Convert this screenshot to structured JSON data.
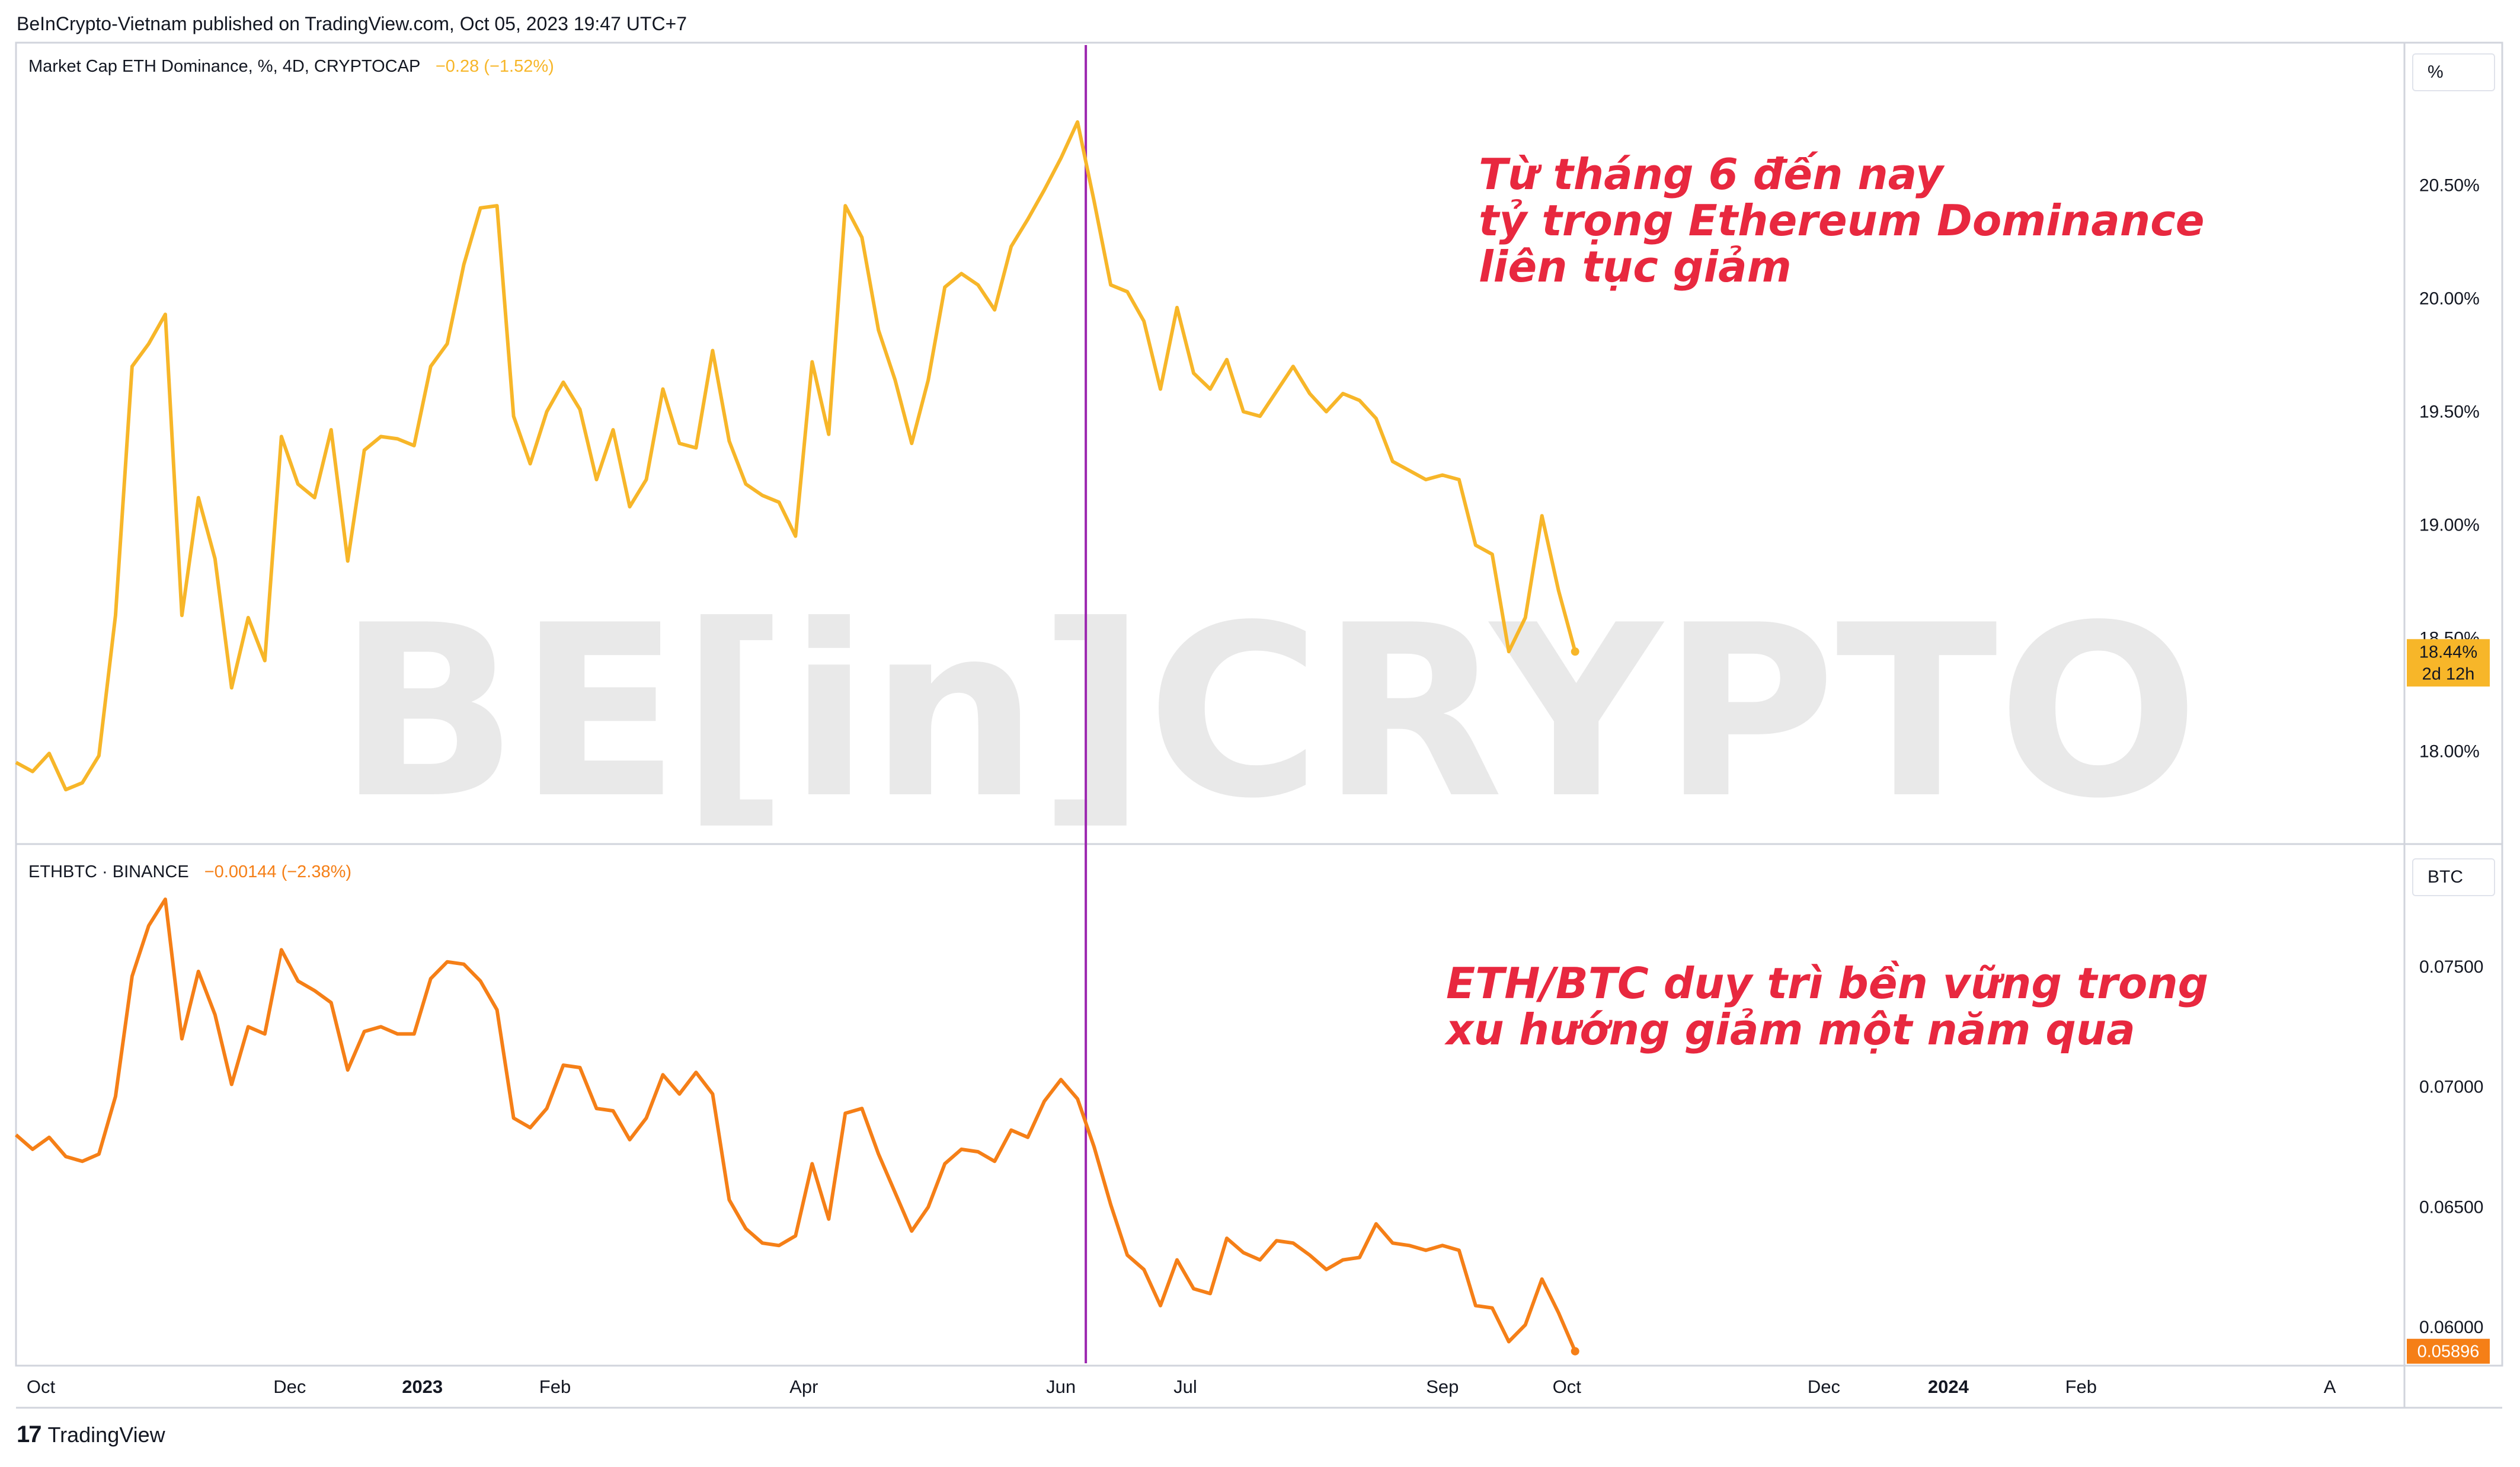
{
  "header": "BeInCrypto-Vietnam published on TradingView.com, Oct 05, 2023 19:47 UTC+7",
  "watermark": "BE[in]CRYPTO",
  "footer": {
    "brand": "TradingView",
    "logo_icon": "tradingview-logo-icon"
  },
  "colors": {
    "dominance": "#f7b629",
    "ethbtc": "#f57f17",
    "marker": "#9c27b0",
    "note": "#e8283f"
  },
  "chart_data": [
    {
      "type": "line",
      "legend": {
        "name": "Market Cap ETH Dominance, %, 4D, CRYPTOCAP",
        "change": "−0.28 (−1.52%)"
      },
      "unit": "%",
      "ylim": [
        17.6,
        21.12
      ],
      "yticks": [
        "20.50%",
        "20.00%",
        "19.50%",
        "19.00%",
        "18.50%",
        "18.00%"
      ],
      "last_label": "18.44%",
      "countdown": "2d 12h",
      "annotation": "Từ tháng 6 đến nay\ntỷ trọng Ethereum Dominance\nliên tục giảm",
      "values": [
        17.95,
        17.91,
        17.99,
        17.83,
        17.86,
        17.98,
        18.6,
        19.7,
        19.8,
        19.93,
        18.6,
        19.12,
        18.85,
        18.28,
        18.59,
        18.4,
        19.39,
        19.18,
        19.12,
        19.42,
        18.84,
        19.33,
        19.39,
        19.38,
        19.35,
        19.7,
        19.8,
        20.15,
        20.4,
        20.41,
        19.48,
        19.27,
        19.5,
        19.63,
        19.51,
        19.2,
        19.42,
        19.08,
        19.2,
        19.6,
        19.36,
        19.34,
        19.77,
        19.37,
        19.18,
        19.13,
        19.1,
        18.95,
        19.72,
        19.4,
        20.41,
        20.27,
        19.86,
        19.64,
        19.36,
        19.64,
        20.05,
        20.11,
        20.06,
        19.95,
        20.23,
        20.35,
        20.48,
        20.62,
        20.78,
        20.43,
        20.06,
        20.03,
        19.9,
        19.6,
        19.96,
        19.67,
        19.6,
        19.73,
        19.5,
        19.48,
        19.59,
        19.7,
        19.58,
        19.5,
        19.58,
        19.55,
        19.47,
        19.28,
        19.24,
        19.2,
        19.22,
        19.2,
        18.91,
        18.87,
        18.44,
        18.59,
        19.04,
        18.71,
        18.44
      ]
    },
    {
      "type": "line",
      "legend": {
        "name": "ETHBTC · BINANCE",
        "change": "−0.00144 (−2.38%)"
      },
      "unit": "BTC",
      "ylim": [
        0.0585,
        0.08
      ],
      "yticks": [
        "0.07500",
        "0.07000",
        "0.06500",
        "0.06000"
      ],
      "last_label": "0.05896",
      "annotation": "ETH/BTC duy trì bền vững trong\nxu hướng giảm một năm qua",
      "values": [
        0.068,
        0.0674,
        0.0679,
        0.0671,
        0.0669,
        0.0672,
        0.0696,
        0.0746,
        0.0767,
        0.0778,
        0.072,
        0.0748,
        0.073,
        0.0701,
        0.0725,
        0.0722,
        0.0757,
        0.0744,
        0.074,
        0.0735,
        0.0707,
        0.0723,
        0.0725,
        0.0722,
        0.0722,
        0.0745,
        0.0752,
        0.0751,
        0.0744,
        0.0732,
        0.0687,
        0.0683,
        0.0691,
        0.0709,
        0.0708,
        0.0691,
        0.069,
        0.0678,
        0.0687,
        0.0705,
        0.0697,
        0.0706,
        0.0697,
        0.0653,
        0.0641,
        0.0635,
        0.0634,
        0.0638,
        0.0668,
        0.0645,
        0.0689,
        0.0691,
        0.0672,
        0.0656,
        0.064,
        0.065,
        0.0668,
        0.0674,
        0.0673,
        0.0669,
        0.0682,
        0.0679,
        0.0694,
        0.0703,
        0.0695,
        0.0675,
        0.0651,
        0.063,
        0.0624,
        0.0609,
        0.0628,
        0.0616,
        0.0614,
        0.0637,
        0.0631,
        0.0628,
        0.0636,
        0.0635,
        0.063,
        0.0624,
        0.0628,
        0.0629,
        0.0643,
        0.0635,
        0.0634,
        0.0632,
        0.0634,
        0.0632,
        0.0609,
        0.0608,
        0.0594,
        0.0601,
        0.062,
        0.0606,
        0.059
      ]
    }
  ],
  "x_axis": {
    "domain": [
      0,
      144
    ],
    "ticks": [
      {
        "label": "Oct",
        "x": 1.5
      },
      {
        "label": "Dec",
        "x": 16.5
      },
      {
        "label": "2023",
        "x": 24.5
      },
      {
        "label": "Feb",
        "x": 32.5
      },
      {
        "label": "Apr",
        "x": 47.5
      },
      {
        "label": "Jun",
        "x": 63
      },
      {
        "label": "Jul",
        "x": 70.5
      },
      {
        "label": "Sep",
        "x": 86
      },
      {
        "label": "Oct",
        "x": 93.5
      },
      {
        "label": "Dec",
        "x": 109
      },
      {
        "label": "2024",
        "x": 116.5
      },
      {
        "label": "Feb",
        "x": 124.5
      },
      {
        "label": "A",
        "x": 139.5
      }
    ],
    "marker_x": 64.5
  }
}
